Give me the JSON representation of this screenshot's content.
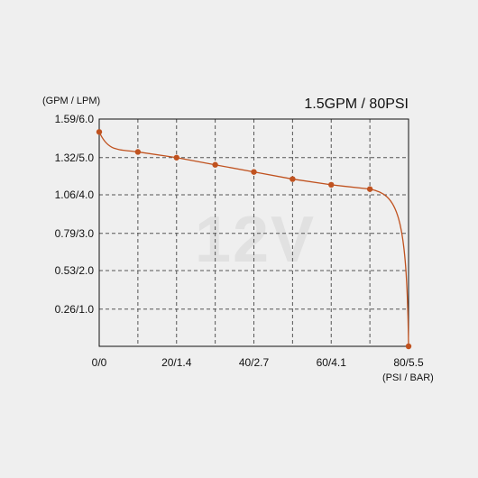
{
  "chart_data": {
    "type": "line",
    "title": "1.5GPM / 80PSI",
    "watermark": "12V",
    "ylabel": "(GPM / LPM)",
    "xlabel": "(PSI / BAR)",
    "x_ticks": [
      {
        "value": 0,
        "label": "0/0"
      },
      {
        "value": 20,
        "label": "20/1.4"
      },
      {
        "value": 40,
        "label": "40/2.7"
      },
      {
        "value": 60,
        "label": "60/4.1"
      },
      {
        "value": 80,
        "label": "80/5.5"
      }
    ],
    "y_ticks": [
      {
        "value": 1.59,
        "label": "1.59/6.0"
      },
      {
        "value": 1.32,
        "label": "1.32/5.0"
      },
      {
        "value": 1.06,
        "label": "1.06/4.0"
      },
      {
        "value": 0.79,
        "label": "0.79/3.0"
      },
      {
        "value": 0.53,
        "label": "0.53/2.0"
      },
      {
        "value": 0.26,
        "label": "0.26/1.0"
      }
    ],
    "xlim": [
      0,
      80
    ],
    "ylim": [
      0,
      1.59
    ],
    "x_gridlines": [
      10,
      20,
      30,
      40,
      50,
      60,
      70
    ],
    "grid": true,
    "series": [
      {
        "color": "#c0521f",
        "points": [
          {
            "x": 0,
            "y": 1.5
          },
          {
            "x": 10,
            "y": 1.36
          },
          {
            "x": 20,
            "y": 1.32
          },
          {
            "x": 30,
            "y": 1.27
          },
          {
            "x": 40,
            "y": 1.22
          },
          {
            "x": 50,
            "y": 1.17
          },
          {
            "x": 60,
            "y": 1.13
          },
          {
            "x": 70,
            "y": 1.1
          },
          {
            "x": 80,
            "y": 0
          }
        ]
      }
    ]
  }
}
